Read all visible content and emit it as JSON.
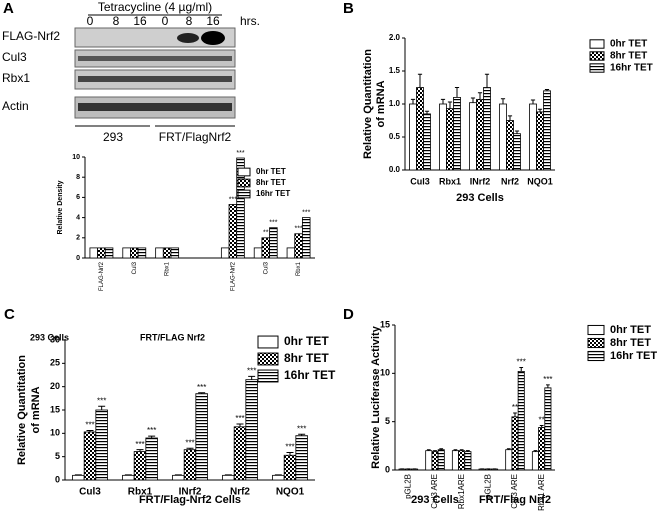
{
  "panels": [
    "A",
    "B",
    "C",
    "D"
  ],
  "blot": {
    "title": "Tetracycline (4 µg/ml)",
    "lanes": [
      "0",
      "8",
      "16",
      "0",
      "8",
      "16"
    ],
    "unit": "hrs.",
    "rows": [
      "FLAG-Nrf2",
      "Cul3",
      "Rbx1",
      "Actin"
    ],
    "groups": [
      "293",
      "FRT/FlagNrf2"
    ]
  },
  "chart_data": [
    {
      "type": "bar",
      "ylabel": [
        "Relative Density"
      ],
      "categories": [
        "FLAG-Nrf2",
        "Cul3",
        "Rbx1",
        null,
        "FLAG-Nrf2",
        "Cul3",
        "Rbx1"
      ],
      "series": [
        {
          "name": "0hr TET",
          "color": "#000000",
          "pattern": "none",
          "values": [
            1,
            1,
            1,
            null,
            1,
            1,
            1
          ]
        },
        {
          "name": "8hr TET",
          "color": "#000000",
          "pattern": "checker",
          "values": [
            1,
            1,
            1,
            null,
            5.3,
            2,
            2.4
          ],
          "annotations": [
            null,
            null,
            null,
            null,
            "***",
            "**",
            "***"
          ]
        },
        {
          "name": "16hr TET",
          "color": "#000000",
          "pattern": "stripes",
          "values": [
            1,
            1,
            1,
            null,
            9.9,
            3,
            4
          ],
          "annotations": [
            null,
            null,
            null,
            null,
            "***",
            "***",
            "***"
          ]
        }
      ],
      "ylim": [
        0,
        10
      ],
      "yticks": [
        0,
        2,
        4,
        6,
        8,
        10
      ],
      "legend": "upper right"
    },
    {
      "type": "bar",
      "ylabel": [
        "Relative Quantitation",
        "of mRNA"
      ],
      "xlabel": "293 Cells",
      "categories": [
        "Cul3",
        "Rbx1",
        "INrf2",
        "Nrf2",
        "NQO1"
      ],
      "series": [
        {
          "name": "0hr TET",
          "color": "#000000",
          "pattern": "none",
          "values": [
            1.0,
            1.0,
            1.02,
            1.0,
            1.0
          ],
          "errors": [
            0.07,
            0.07,
            0.07,
            0.08,
            0.06
          ]
        },
        {
          "name": "8hr TET",
          "color": "#000000",
          "pattern": "checker",
          "values": [
            1.25,
            0.93,
            1.07,
            0.75,
            0.88
          ],
          "errors": [
            0.2,
            0.1,
            0.1,
            0.07,
            0.04
          ]
        },
        {
          "name": "16hr TET",
          "color": "#000000",
          "pattern": "stripes",
          "values": [
            0.85,
            1.1,
            1.25,
            0.55,
            1.2
          ],
          "errors": [
            0.04,
            0.15,
            0.2,
            0.04,
            0.02
          ]
        }
      ],
      "ylim": [
        0,
        2
      ],
      "yticks": [
        {
          "value": 0,
          "label": "0.0"
        },
        {
          "value": 0.5,
          "label": "0.5"
        },
        {
          "value": 1,
          "label": "1.0"
        },
        {
          "value": 1.5,
          "label": "1.5"
        },
        {
          "value": 2,
          "label": "2.0"
        }
      ],
      "legend": "upper right"
    },
    {
      "type": "bar",
      "ylabel": [
        "Relative Quantitation",
        "of mRNA"
      ],
      "xlabel": "FRT/Flag-Nrf2 Cells",
      "annotations": [
        "293 Cells",
        "FRT/FLAG Nrf2"
      ],
      "categories": [
        "Cul3",
        "Rbx1",
        "INrf2",
        "Nrf2",
        "NQO1"
      ],
      "series": [
        {
          "name": "0hr TET",
          "color": "#000000",
          "pattern": "none",
          "values": [
            1,
            1,
            1,
            1,
            1
          ],
          "errors": [
            0.1,
            0.1,
            0.1,
            0.1,
            0.1
          ]
        },
        {
          "name": "8hr TET",
          "color": "#000000",
          "pattern": "checker",
          "values": [
            10.3,
            6.1,
            6.5,
            11.4,
            5.3
          ],
          "errors": [
            0.3,
            0.4,
            0.3,
            0.6,
            0.6
          ],
          "annotations": [
            "***",
            "***",
            "***",
            "***",
            "***"
          ]
        },
        {
          "name": "16hr TET",
          "color": "#000000",
          "pattern": "stripes",
          "values": [
            15,
            9,
            18.5,
            21.5,
            9.5
          ],
          "errors": [
            0.8,
            0.4,
            0.2,
            0.7,
            0.3
          ],
          "annotations": [
            "***",
            "***",
            "***",
            "***",
            "***"
          ]
        }
      ],
      "ylim": [
        0,
        30
      ],
      "yticks": [
        0,
        5,
        10,
        15,
        20,
        25,
        30
      ],
      "legend": "upper right"
    },
    {
      "type": "bar",
      "ylabel": [
        "Relative Luciferase Activity"
      ],
      "group_labels": [
        "293 Cells",
        "FRT/Flag Nrf2"
      ],
      "categories": [
        "pGL2B",
        "Cul3 ARE",
        "Rbx1ARE",
        "pGL2B",
        "Cul3 ARE",
        "Rbx1 ARE"
      ],
      "series": [
        {
          "name": "0hr TET",
          "color": "#000000",
          "pattern": "none",
          "values": [
            0.1,
            2.0,
            2.0,
            0.1,
            2.1,
            1.9
          ],
          "errors": [
            0.02,
            0.1,
            0.1,
            0.02,
            0.1,
            0.1
          ]
        },
        {
          "name": "8hr TET",
          "color": "#000000",
          "pattern": "checker",
          "values": [
            0.1,
            1.9,
            2.0,
            0.1,
            5.5,
            4.4
          ],
          "errors": [
            0.02,
            0.1,
            0.1,
            0.02,
            0.4,
            0.2
          ],
          "annotations": [
            null,
            null,
            null,
            null,
            "**",
            "**"
          ]
        },
        {
          "name": "16hr TET",
          "color": "#000000",
          "pattern": "stripes",
          "values": [
            0.1,
            2.1,
            1.9,
            0.1,
            10.2,
            8.5
          ],
          "errors": [
            0.02,
            0.1,
            0.1,
            0.02,
            0.4,
            0.3
          ],
          "annotations": [
            null,
            null,
            null,
            null,
            "***",
            "***"
          ]
        }
      ],
      "ylim": [
        0,
        15
      ],
      "yticks": [
        0,
        5,
        10,
        15
      ],
      "legend": "upper right"
    }
  ]
}
